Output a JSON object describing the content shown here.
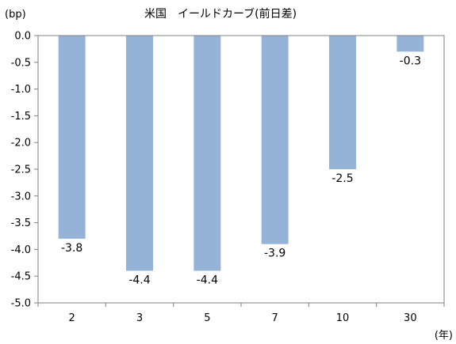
{
  "chart_data": {
    "type": "bar",
    "title": "米国　イールドカーブ(前日差)",
    "ylabel": "(bp)",
    "xlabel": "(年)",
    "categories": [
      "2",
      "3",
      "5",
      "7",
      "10",
      "30"
    ],
    "series": [
      {
        "values": [
          -3.8,
          -4.4,
          -4.4,
          -3.9,
          -2.5,
          -0.3
        ]
      }
    ],
    "data_labels": [
      "-3.8",
      "-4.4",
      "-4.4",
      "-3.9",
      "-2.5",
      "-0.3"
    ],
    "y_ticks": [
      "0.0",
      "-0.5",
      "-1.0",
      "-1.5",
      "-2.0",
      "-2.5",
      "-3.0",
      "-3.5",
      "-4.0",
      "-4.5",
      "-5.0"
    ],
    "y_tick_values": [
      0,
      -0.5,
      -1.0,
      -1.5,
      -2.0,
      -2.5,
      -3.0,
      -3.5,
      -4.0,
      -4.5,
      -5.0
    ],
    "ylim": [
      -5.0,
      0.0
    ],
    "grid": false,
    "legend": "none",
    "colors": {
      "bar": "#95b3d7",
      "axis": "#808080",
      "frame": "#808080"
    }
  }
}
